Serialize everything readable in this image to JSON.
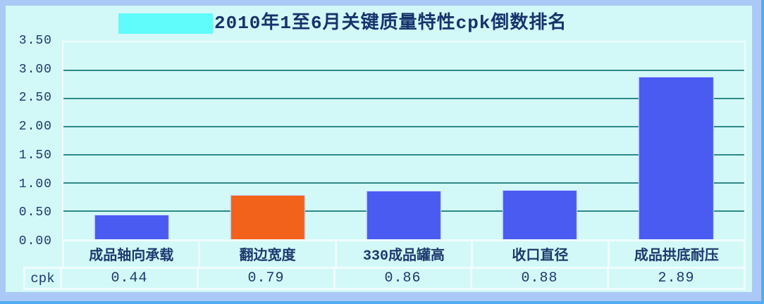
{
  "window": {
    "background_color": "#d2f9f7",
    "frame_color": "#abc9f6",
    "edge_highlight_color": "#52adf2"
  },
  "chart_data": {
    "type": "bar",
    "title": "2010年1至6月关键质量特性cpk倒数排名",
    "title_highlight_color": "#60fbfb",
    "categories": [
      "成品轴向承载",
      "翻边宽度",
      "330成品罐高",
      "收口直径",
      "成品拱底耐压"
    ],
    "series": [
      {
        "name": "cpk",
        "values": [
          0.44,
          0.79,
          0.86,
          0.88,
          2.89
        ]
      }
    ],
    "value_labels": [
      "0.44",
      "0.79",
      "0.86",
      "0.88",
      "2.89"
    ],
    "table_row_label": "cpk",
    "y_ticks": [
      "3.50",
      "3.00",
      "2.50",
      "2.00",
      "1.50",
      "1.00",
      "0.50",
      "0.00"
    ],
    "ylim": [
      0,
      3.5
    ],
    "grid": true,
    "gridline_color": "#2d8989",
    "bar_colors": [
      "#4a5bf2",
      "#f2621a",
      "#4a5bf2",
      "#4a5bf2",
      "#4a5bf2"
    ],
    "text_color": "#1b3a6e",
    "legend_position": "none"
  }
}
